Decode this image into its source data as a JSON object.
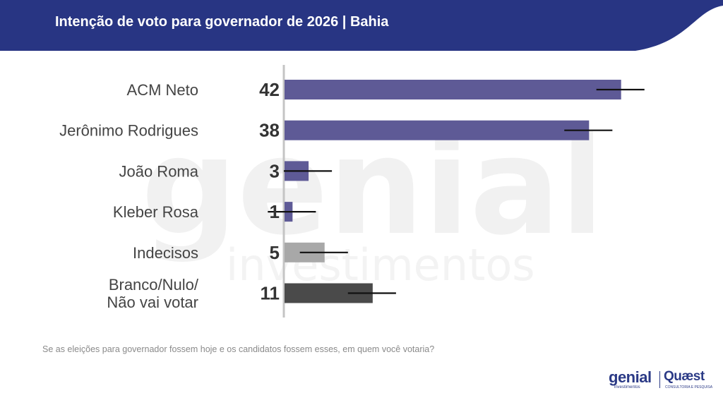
{
  "header": {
    "title": "Intenção de voto para governador de 2026 | Bahia",
    "bg_color": "#283583"
  },
  "watermark": {
    "brand": "genial",
    "sub": "investimentos"
  },
  "chart_data": {
    "type": "bar",
    "orientation": "horizontal",
    "categories": [
      "ACM Neto",
      "Jerônimo Rodrigues",
      "João Roma",
      "Kleber Rosa",
      "Indecisos",
      "Branco/Nulo/\nNão vai votar"
    ],
    "values": [
      42,
      38,
      3,
      1,
      5,
      11
    ],
    "value_labels": [
      "42",
      "38",
      "3",
      "1",
      "5",
      "11"
    ],
    "margin_of_error": 3,
    "colors": [
      "#5e5a96",
      "#5e5a96",
      "#5e5a96",
      "#5e5a96",
      "#a8a8a8",
      "#4a4a4a"
    ],
    "xlim": [
      0,
      50
    ],
    "grid": false
  },
  "footer": {
    "question": "Se as eleições para governador fossem hoje e os candidatos fossem esses, em quem você votaria?"
  },
  "logos": {
    "genial": "genial",
    "genial_sub": "investimentos",
    "quaest": "Quæst",
    "quaest_sub": "CONSULTORIA E PESQUISA"
  }
}
